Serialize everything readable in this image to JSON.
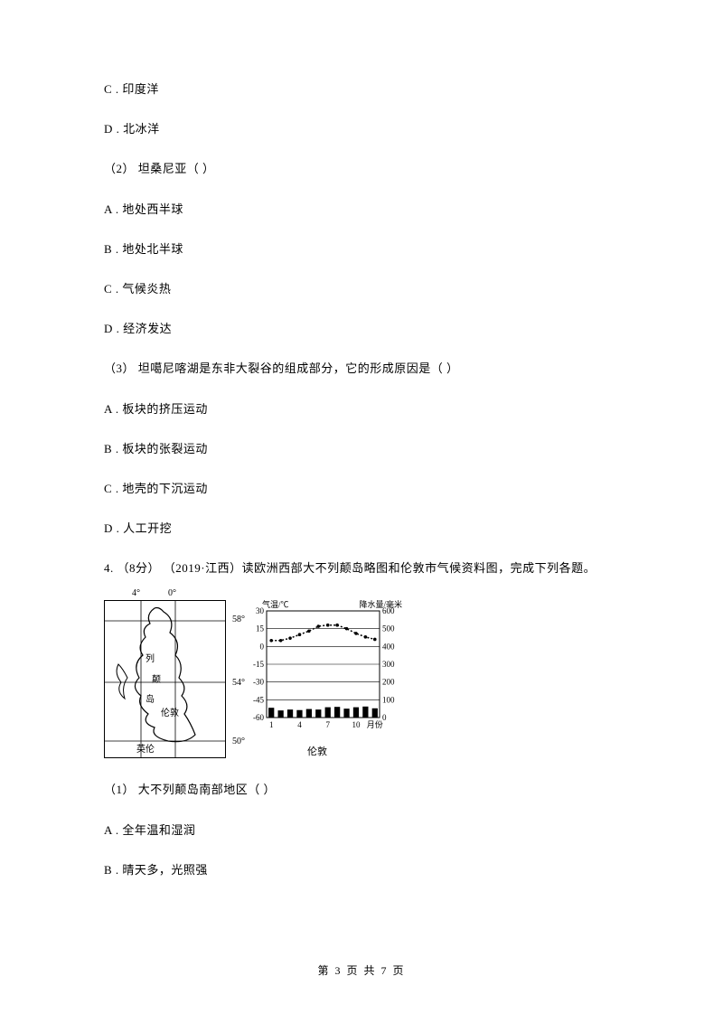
{
  "options1": {
    "c": "C .  印度洋",
    "d": "D .  北冰洋"
  },
  "q2": {
    "stem": "（2）  坦桑尼亚（        ）",
    "a": "A .  地处西半球",
    "b": "B .  地处北半球",
    "c": "C .  气候炎热",
    "d": "D .  经济发达"
  },
  "q3": {
    "stem": "（3）  坦噶尼喀湖是东非大裂谷的组成部分，它的形成原因是（        ）",
    "a": "A .  板块的挤压运动",
    "b": "B .  板块的张裂运动",
    "c": "C .  地壳的下沉运动",
    "d": "D .  人工开挖"
  },
  "q4": {
    "stem": "4.  （8分） （2019·江西）读欧洲西部大不列颠岛略图和伦敦市气候资料图，完成下列各题。",
    "sub1": "（1）  大不列颠岛南部地区（        ）",
    "a": "A .  全年温和湿润",
    "b": "B .  晴天多，光照强"
  },
  "map": {
    "lon_labels": [
      "4°",
      "0°"
    ],
    "lat_labels": [
      "58°",
      "54°",
      "50°"
    ],
    "place_labels": {
      "island1": "列",
      "island2": "颠",
      "island3": "岛",
      "city": "伦敦",
      "strait": "英伦"
    },
    "border_color": "#000000",
    "coast_color": "#000000"
  },
  "chart": {
    "title_left": "气温/℃",
    "title_right": "降水量/毫米",
    "temp_axis": {
      "min": -60,
      "max": 30,
      "ticks": [
        30,
        15,
        0,
        -15,
        -30,
        -45,
        -60
      ]
    },
    "precip_axis": {
      "min": 0,
      "max": 600,
      "ticks": [
        600,
        500,
        400,
        300,
        200,
        100,
        0
      ]
    },
    "months": [
      "1",
      "",
      "",
      "4",
      "",
      "",
      "7",
      "",
      "",
      "10",
      "",
      "月份"
    ],
    "temp_values": [
      5,
      5,
      7,
      10,
      13,
      17,
      18,
      18,
      15,
      11,
      8,
      6
    ],
    "precip_values": [
      55,
      40,
      45,
      42,
      48,
      45,
      58,
      60,
      50,
      58,
      62,
      52
    ],
    "city_label": "伦敦",
    "line_color": "#000000",
    "bar_color": "#000000",
    "grid_color": "#000000",
    "background_color": "#ffffff",
    "font_size": 9,
    "line_width": 1.5,
    "bar_width": 0.6
  },
  "footer": "第 3 页 共 7 页"
}
